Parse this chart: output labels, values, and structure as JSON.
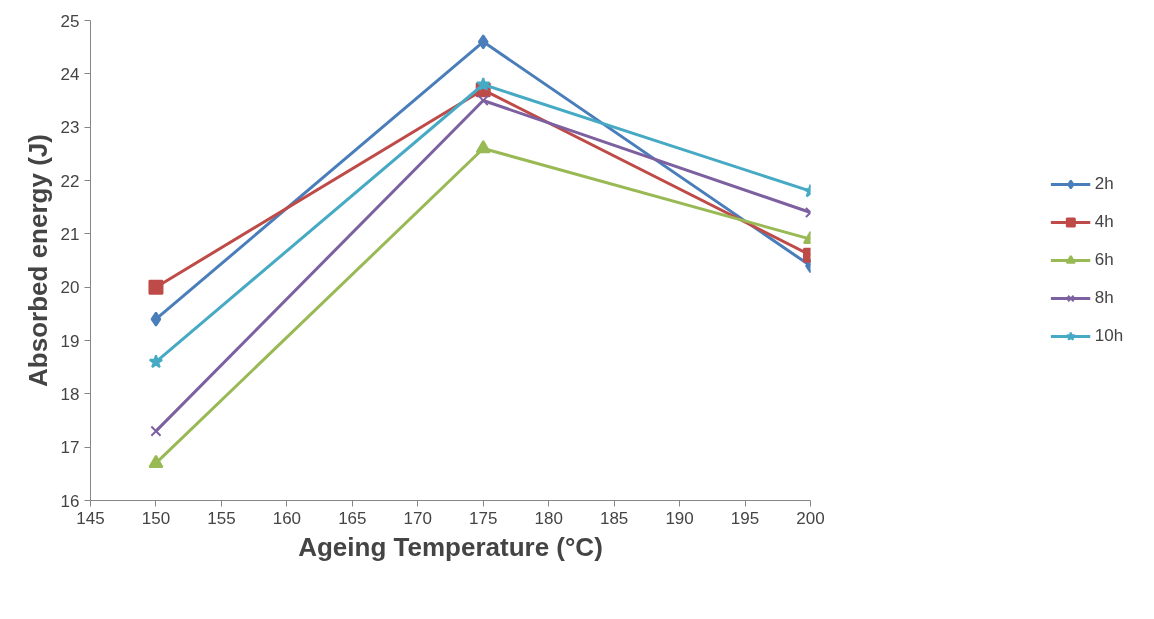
{
  "chart_data": {
    "type": "line",
    "xlabel": "Ageing Temperature (°C)",
    "ylabel": "Absorbed energy (J)",
    "x": [
      150,
      175,
      200
    ],
    "xlim": [
      145,
      200
    ],
    "xticks": [
      145,
      150,
      155,
      160,
      165,
      170,
      175,
      180,
      185,
      190,
      195,
      200
    ],
    "ylim": [
      16,
      25
    ],
    "yticks": [
      16,
      17,
      18,
      19,
      20,
      21,
      22,
      23,
      24,
      25
    ],
    "grid": false,
    "legend": "right",
    "line_style": "solid",
    "series": [
      {
        "name": "2h",
        "color": "#4a7ebb",
        "marker": "diamond",
        "values": [
          19.4,
          24.6,
          20.4
        ]
      },
      {
        "name": "4h",
        "color": "#be4b48",
        "marker": "square",
        "values": [
          20.0,
          23.7,
          20.6
        ]
      },
      {
        "name": "6h",
        "color": "#98b954",
        "marker": "triangle",
        "values": [
          16.7,
          22.6,
          20.9
        ]
      },
      {
        "name": "8h",
        "color": "#7d60a0",
        "marker": "cross",
        "values": [
          17.3,
          23.5,
          21.4
        ]
      },
      {
        "name": "10h",
        "color": "#46aac5",
        "marker": "star",
        "values": [
          18.6,
          23.8,
          21.8
        ]
      }
    ]
  }
}
